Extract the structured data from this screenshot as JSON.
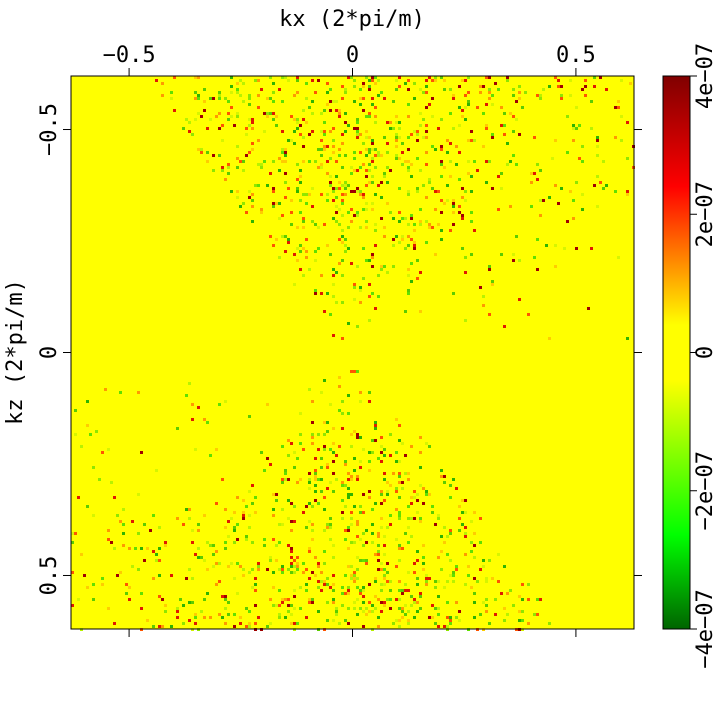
{
  "chart_data": {
    "type": "heatmap",
    "title": "",
    "xlabel": "kx (2*pi/m)",
    "ylabel": "kz (2*pi/m)",
    "xlim": [
      -0.63,
      0.63
    ],
    "ylim": [
      -0.62,
      0.62
    ],
    "y_axis_inverted": true,
    "x_axis_position": "top",
    "x_ticks": [
      {
        "value": -0.5,
        "label": "−0.5"
      },
      {
        "value": 0,
        "label": "0"
      },
      {
        "value": 0.5,
        "label": "0.5"
      }
    ],
    "y_ticks": [
      {
        "value": -0.5,
        "label": "−0.5"
      },
      {
        "value": 0,
        "label": "0"
      },
      {
        "value": 0.5,
        "label": "0.5"
      }
    ],
    "colorbar": {
      "range": [
        -4e-07,
        4e-07
      ],
      "ticks": [
        {
          "value": -4e-07,
          "label": "−4e−07"
        },
        {
          "value": -2e-07,
          "label": "−2e−07"
        },
        {
          "value": 0,
          "label": "0"
        },
        {
          "value": 2e-07,
          "label": "2e−07"
        },
        {
          "value": 4e-07,
          "label": "4e−07"
        }
      ],
      "colormap": [
        "#006400",
        "#00ff00",
        "#ffff00",
        "#ff0000",
        "#800000"
      ]
    },
    "background_value": 0,
    "noise": "random values concentrated in an hourglass region opening along kz, plus scattered noise near the left-bottom and top-right",
    "grid": false
  }
}
